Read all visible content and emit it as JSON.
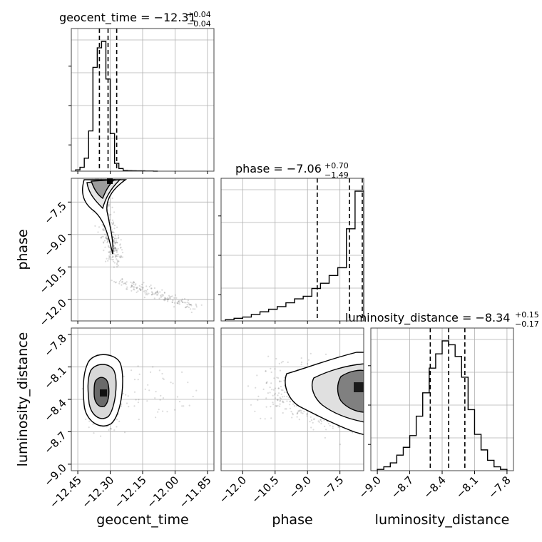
{
  "chart_data": {
    "type": "corner",
    "parameters": [
      "geocent_time",
      "phase",
      "luminosity_distance"
    ],
    "titles": [
      {
        "name": "geocent_time",
        "median": "−12.31",
        "plus": "+0.04",
        "minus": "−0.04"
      },
      {
        "name": "phase",
        "median": "−7.06",
        "plus": "+0.70",
        "minus": "−1.49"
      },
      {
        "name": "luminosity_distance",
        "median": "−8.34",
        "plus": "+0.15",
        "minus": "−0.17"
      }
    ],
    "axis_ranges": {
      "geocent_time": [
        -12.48,
        -11.82
      ],
      "phase": [
        -13.0,
        -6.4
      ],
      "luminosity_distance": [
        -9.06,
        -7.74
      ]
    },
    "ticks": {
      "geocent_time": {
        "values": [
          -12.45,
          -12.3,
          -12.15,
          -12.0,
          -11.85
        ],
        "labels": [
          "−12.45",
          "−12.30",
          "−12.15",
          "−12.00",
          "−11.85"
        ]
      },
      "phase": {
        "values": [
          -12.0,
          -10.5,
          -9.0,
          -7.5
        ],
        "labels": [
          "−12.0",
          "−10.5",
          "−9.0",
          "−7.5"
        ]
      },
      "luminosity_distance": {
        "values": [
          -9.0,
          -8.7,
          -8.4,
          -8.1,
          -7.8
        ],
        "labels": [
          "−9.0",
          "−8.7",
          "−8.4",
          "−8.1",
          "−7.8"
        ]
      }
    },
    "quantiles": {
      "geocent_time": [
        -12.35,
        -12.31,
        -12.27
      ],
      "phase": [
        -8.55,
        -7.06,
        -6.36
      ],
      "luminosity_distance": [
        -8.51,
        -8.34,
        -8.19
      ]
    },
    "histograms": {
      "geocent_time": {
        "edges": [
          -12.46,
          -12.44,
          -12.42,
          -12.4,
          -12.38,
          -12.36,
          -12.34,
          -12.32,
          -12.3,
          -12.28,
          -12.26,
          -12.24,
          -12.22,
          -12.2,
          -12.18,
          -12.16,
          -12.14,
          -12.12,
          -12.1,
          -12.08
        ],
        "counts": [
          0.01,
          0.03,
          0.1,
          0.31,
          0.8,
          0.95,
          1.0,
          0.71,
          0.29,
          0.06,
          0.02,
          0.005,
          0.004,
          0.003,
          0.002,
          0.002,
          0.001,
          0.001,
          0.0
        ]
      },
      "phase": {
        "edges": [
          -12.8,
          -12.4,
          -12.0,
          -11.6,
          -11.2,
          -10.8,
          -10.4,
          -10.0,
          -9.6,
          -9.2,
          -8.8,
          -8.4,
          -8.0,
          -7.6,
          -7.2,
          -6.8,
          -6.4
        ],
        "counts": [
          0.01,
          0.02,
          0.03,
          0.05,
          0.07,
          0.09,
          0.11,
          0.14,
          0.17,
          0.19,
          0.25,
          0.29,
          0.35,
          0.41,
          0.71,
          1.0
        ]
      },
      "luminosity_distance": {
        "edges": [
          -9.0,
          -8.94,
          -8.88,
          -8.82,
          -8.76,
          -8.7,
          -8.64,
          -8.58,
          -8.52,
          -8.46,
          -8.4,
          -8.34,
          -8.28,
          -8.22,
          -8.16,
          -8.1,
          -8.04,
          -7.98,
          -7.92,
          -7.86,
          -7.8
        ],
        "counts": [
          0.01,
          0.03,
          0.06,
          0.12,
          0.18,
          0.27,
          0.42,
          0.6,
          0.79,
          0.9,
          1.0,
          0.97,
          0.88,
          0.72,
          0.47,
          0.28,
          0.16,
          0.08,
          0.03,
          0.01
        ]
      }
    },
    "pair_densities": [
      {
        "x": "geocent_time",
        "y": "phase",
        "center": [
          -12.3,
          -6.8
        ],
        "note": "samples trail from top toward lower right"
      },
      {
        "x": "geocent_time",
        "y": "luminosity_distance",
        "center": [
          -12.31,
          -8.35
        ]
      },
      {
        "x": "phase",
        "y": "luminosity_distance",
        "center": [
          -6.9,
          -8.35
        ]
      }
    ],
    "grid": true
  }
}
